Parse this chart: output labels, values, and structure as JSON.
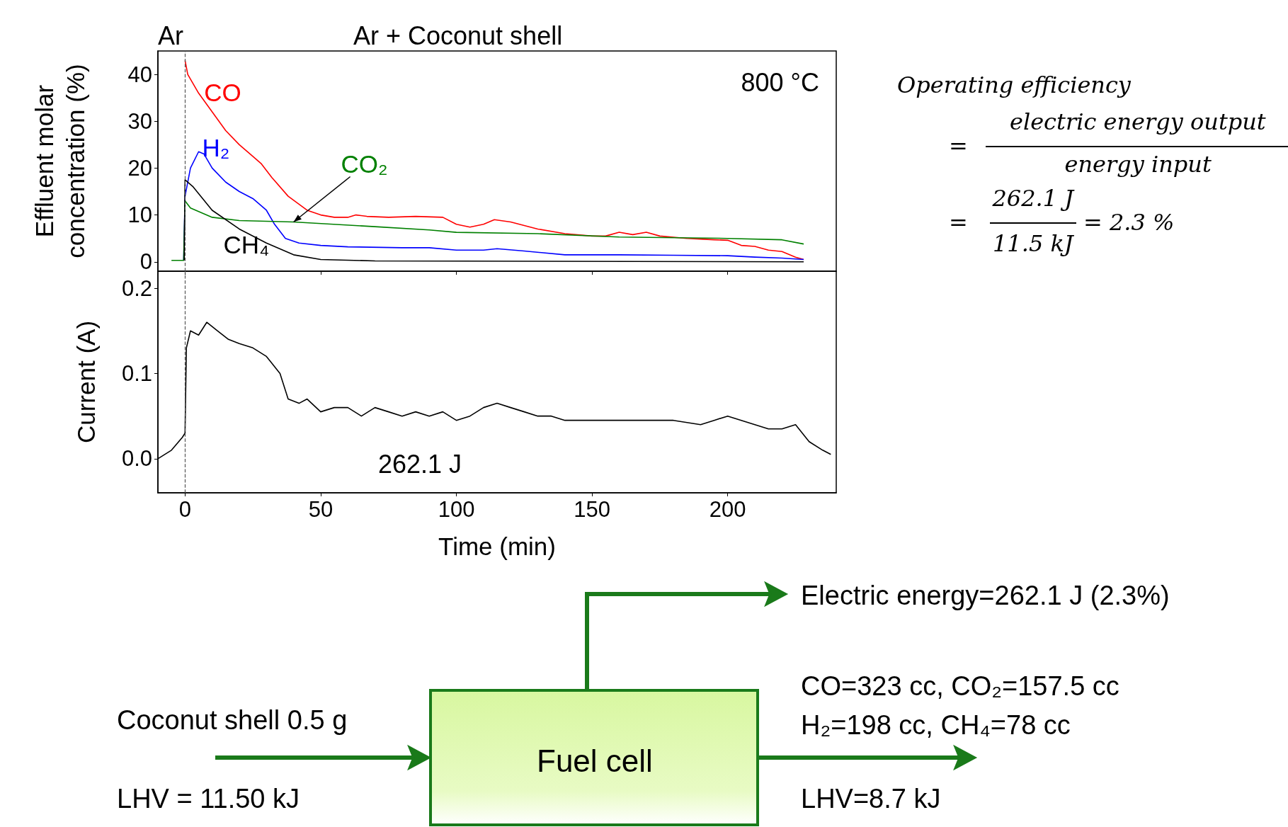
{
  "chart_data": [
    {
      "type": "line",
      "ylabel": "Effluent molar concentration (%)",
      "xlim": [
        -10,
        240
      ],
      "xticks": [
        0,
        50,
        100,
        150,
        200
      ],
      "ylim": [
        -2,
        45
      ],
      "yticks": [
        0,
        10,
        20,
        30,
        40
      ],
      "tick_labels": "y",
      "legend": false,
      "annotations": [
        "Ar",
        "Ar + Coconut shell",
        "800 °C"
      ],
      "ref_lines": [
        {
          "axis": "x",
          "value": 0,
          "line_style": "dashed",
          "color": "#555555"
        }
      ],
      "series": [
        {
          "name": "CO",
          "color": "#ff0000",
          "x": [
            0,
            1,
            5,
            10,
            15,
            20,
            25,
            28,
            32,
            38,
            45,
            50,
            55,
            60,
            63,
            67,
            75,
            85,
            95,
            100,
            105,
            110,
            114,
            120,
            130,
            140,
            150,
            155,
            160,
            165,
            170,
            175,
            185,
            195,
            200,
            205,
            210,
            215,
            220,
            225,
            228
          ],
          "values": [
            43,
            40,
            36,
            32,
            28,
            25,
            22.5,
            21,
            18,
            14,
            11,
            10,
            9.5,
            9.5,
            10,
            9.7,
            9.5,
            9.7,
            9.5,
            8,
            7.4,
            8,
            9,
            8.5,
            7,
            6,
            5.5,
            5.5,
            6.3,
            5.8,
            6.3,
            5.5,
            5,
            4.7,
            4.6,
            3.5,
            3.3,
            2.5,
            2.2,
            1,
            0.5
          ]
        },
        {
          "name": "H₂",
          "color": "#0000ff",
          "x": [
            -0.5,
            0,
            2,
            5,
            7,
            10,
            15,
            20,
            25,
            30,
            33,
            37,
            42,
            50,
            60,
            80,
            90,
            100,
            110,
            115,
            125,
            140,
            160,
            180,
            200,
            210,
            220,
            228
          ],
          "values": [
            0.3,
            14,
            20,
            23.5,
            23,
            20,
            17,
            15,
            13.5,
            11,
            8,
            5,
            4,
            3.5,
            3.2,
            3,
            3,
            2.5,
            2.5,
            2.8,
            2.3,
            1.5,
            1.5,
            1.4,
            1.3,
            1,
            0.8,
            0.5
          ]
        },
        {
          "name": "CO₂",
          "color": "#008000",
          "x": [
            -5,
            -0.5,
            0,
            2,
            10,
            20,
            40,
            70,
            90,
            100,
            130,
            160,
            200,
            220,
            228
          ],
          "values": [
            0.3,
            0.3,
            13,
            11.5,
            9.5,
            8.8,
            8.5,
            7.5,
            6.8,
            6.3,
            6,
            5.3,
            5,
            4.7,
            3.8
          ]
        },
        {
          "name": "CH₄",
          "color": "#000000",
          "x": [
            -0.3,
            0,
            3,
            10,
            20,
            30,
            40,
            50,
            70,
            228
          ],
          "values": [
            0.3,
            17.5,
            16,
            11,
            7,
            4,
            1.5,
            0.5,
            0.2,
            0
          ]
        }
      ]
    },
    {
      "type": "line",
      "xlabel": "Time (min)",
      "ylabel": "Current (A)",
      "xlim": [
        -10,
        240
      ],
      "xticks": [
        0,
        50,
        100,
        150,
        200
      ],
      "ylim": [
        -0.04,
        0.22
      ],
      "yticks": [
        {
          "value": 0,
          "label": "0.0"
        },
        {
          "value": 0.1,
          "label": "0.1"
        },
        {
          "value": 0.2,
          "label": "0.2"
        }
      ],
      "legend": false,
      "annotations": [
        "262.1 J"
      ],
      "ref_lines": [
        {
          "axis": "x",
          "value": 0,
          "line_style": "dashed",
          "color": "#555555"
        }
      ],
      "series": [
        {
          "color": "#000000",
          "x": [
            -10,
            -5,
            -1,
            0,
            0.5,
            2,
            5,
            8,
            12,
            16,
            20,
            25,
            30,
            35,
            38,
            42,
            45,
            50,
            55,
            60,
            65,
            70,
            75,
            80,
            85,
            90,
            95,
            100,
            105,
            110,
            115,
            120,
            125,
            130,
            135,
            140,
            150,
            160,
            170,
            180,
            190,
            195,
            200,
            205,
            210,
            215,
            220,
            225,
            230,
            235,
            238
          ],
          "values": [
            0,
            0.01,
            0.025,
            0.03,
            0.13,
            0.15,
            0.145,
            0.16,
            0.15,
            0.14,
            0.135,
            0.13,
            0.12,
            0.1,
            0.07,
            0.065,
            0.07,
            0.055,
            0.06,
            0.06,
            0.05,
            0.06,
            0.055,
            0.05,
            0.055,
            0.05,
            0.055,
            0.045,
            0.05,
            0.06,
            0.065,
            0.06,
            0.055,
            0.05,
            0.05,
            0.045,
            0.045,
            0.045,
            0.045,
            0.045,
            0.04,
            0.045,
            0.05,
            0.045,
            0.04,
            0.035,
            0.035,
            0.04,
            0.02,
            0.01,
            0.005
          ]
        }
      ]
    },
    {
      "type": "other",
      "annotations": [
        "Operating efficiency",
        "=",
        "electric energy output",
        "energy input",
        "=",
        "262.1 J",
        "11.5 kJ",
        "= 2.3 %",
        "Electric energy=262.1 J (2.3%)",
        "Fuel cell",
        "Coconut shell 0.5 g",
        "LHV = 11.50 kJ",
        "CO=323 cc, CO₂=157.5 cc",
        "H₂=198 cc, CH₄=78 cc",
        "LHV=8.7 kJ"
      ]
    }
  ]
}
